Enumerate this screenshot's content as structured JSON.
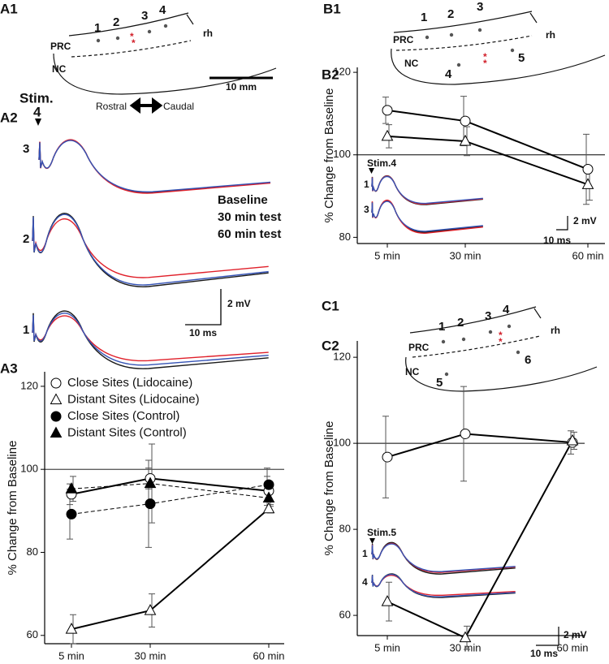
{
  "chart_data": [
    {
      "type": "line",
      "label": "A3",
      "ylabel": "% Change from Baseline",
      "categories": [
        "5 min",
        "30 min",
        "60 min"
      ],
      "ylim": [
        58,
        123.5
      ],
      "yticks": [
        60,
        80,
        100,
        120
      ],
      "reference_line": 100,
      "grid": false,
      "legend": "upper left",
      "series": [
        {
          "name": "Close Sites (Lidocaine)",
          "color": "#000000",
          "marker": "circle",
          "filled": false,
          "dashed": false,
          "values": [
            94,
            97.8,
            94.8
          ],
          "errors": [
            2.5,
            2.5,
            3.5
          ]
        },
        {
          "name": "Distant Sites (Lidocaine)",
          "color": "#000000",
          "marker": "triangle",
          "filled": false,
          "dashed": false,
          "values": [
            61.5,
            66,
            90.5
          ],
          "errors": [
            3.5,
            4,
            1
          ]
        },
        {
          "name": "Close Sites (Control)",
          "color": "#000000",
          "marker": "circle",
          "filled": true,
          "dashed": true,
          "values": [
            89.2,
            91.7,
            96.3
          ],
          "errors": [
            6,
            10.5,
            4
          ]
        },
        {
          "name": "Distant Sites (Control)",
          "color": "#000000",
          "marker": "triangle",
          "filled": true,
          "dashed": true,
          "values": [
            95.3,
            96.6,
            93.1
          ],
          "errors": [
            3,
            9.5,
            2
          ]
        }
      ]
    },
    {
      "type": "line",
      "label": "B2",
      "ylabel": "% Change from Baseline",
      "categories": [
        "5 min",
        "30 min",
        "60 min"
      ],
      "ylim": [
        78.5,
        121.2
      ],
      "yticks": [
        80,
        100,
        120
      ],
      "reference_line": 100,
      "grid": false,
      "series": [
        {
          "color": "#000000",
          "marker": "circle",
          "filled": false,
          "dashed": false,
          "values": [
            110.8,
            108.2,
            96.5
          ],
          "errors": [
            3.2,
            6,
            8.5
          ]
        },
        {
          "color": "#000000",
          "marker": "triangle",
          "filled": false,
          "dashed": false,
          "values": [
            104.5,
            103.3,
            92.8
          ],
          "errors": [
            2.8,
            3.5,
            3.8
          ]
        }
      ]
    },
    {
      "type": "line",
      "label": "C2",
      "ylabel": "% Change from Baseline",
      "categories": [
        "5 min",
        "30 min",
        "60 min"
      ],
      "ylim": [
        55.3,
        123.8
      ],
      "yticks": [
        60,
        80,
        100,
        120
      ],
      "reference_line": 100,
      "grid": false,
      "series": [
        {
          "color": "#000000",
          "marker": "circle",
          "filled": false,
          "dashed": false,
          "values": [
            96.8,
            102.2,
            100.2
          ],
          "errors": [
            9.5,
            11,
            2.7
          ]
        },
        {
          "color": "#000000",
          "marker": "triangle",
          "filled": false,
          "dashed": false,
          "values": [
            63.2,
            54.8,
            100.6
          ],
          "errors": [
            4.5,
            2.7,
            2
          ]
        }
      ]
    }
  ],
  "panels": {
    "A1": {
      "label": "A1",
      "sites": [
        "1",
        "2",
        "3",
        "4"
      ],
      "prc": "PRC",
      "nc": "NC",
      "rh": "rh",
      "scale": "10 mm",
      "stim": "Stim.",
      "stim_site": "4",
      "rostral": "Rostral",
      "caudal": "Caudal"
    },
    "A2": {
      "label": "A2",
      "trace_labels": [
        "3",
        "2",
        "1"
      ],
      "legend": [
        "Baseline",
        "30 min test",
        "60 min test"
      ],
      "legend_colors": [
        "#1a1a1a",
        "#e0202a",
        "#3553b5"
      ],
      "scale_mv": "2 mV",
      "scale_ms": "10 ms"
    },
    "B1": {
      "label": "B1",
      "sites": [
        "1",
        "2",
        "3",
        "4",
        "5"
      ],
      "prc": "PRC",
      "nc": "NC",
      "rh": "rh"
    },
    "B2": {
      "stim": "Stim.4",
      "trace_labels": [
        "1",
        "3"
      ],
      "scale_mv": "2 mV",
      "scale_ms": "10 ms"
    },
    "C1": {
      "label": "C1",
      "sites": [
        "1",
        "2",
        "3",
        "4",
        "5",
        "6"
      ],
      "prc": "PRC",
      "nc": "NC",
      "rh": "rh"
    },
    "C2": {
      "stim": "Stim.5",
      "trace_labels": [
        "1",
        "4"
      ],
      "scale_mv": "2 mV",
      "scale_ms": "10 ms"
    }
  }
}
